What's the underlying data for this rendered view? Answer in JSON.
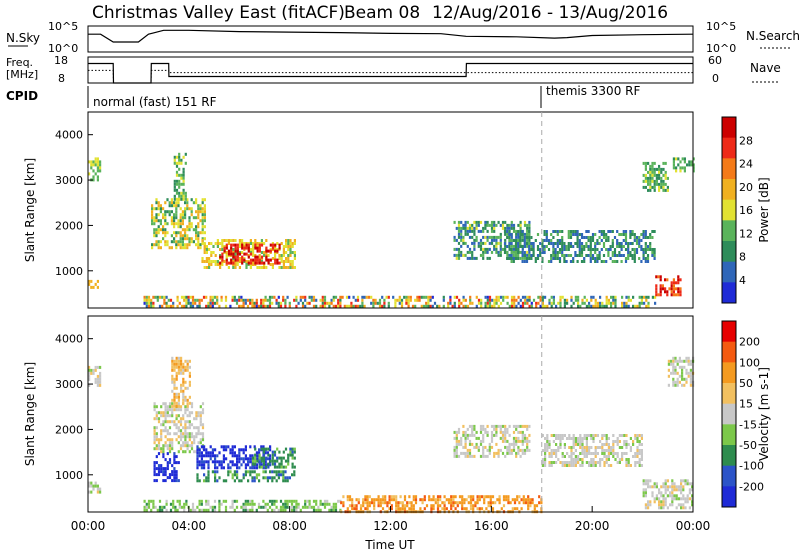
{
  "title": "Christmas Valley East (fitACF)",
  "beam_label": "Beam 08",
  "date_range": "12/Aug/2016 - 13/Aug/2016",
  "colors": {
    "power_scale": [
      "#1f2bd6",
      "#2f66b8",
      "#2e8c5a",
      "#5ab35b",
      "#e2e233",
      "#f0b020",
      "#f47a18",
      "#ee2a18",
      "#cc0000"
    ],
    "velocity_scale": [
      "#e60000",
      "#f45a10",
      "#f49a20",
      "#f2c060",
      "#c8c8c8",
      "#7cc84a",
      "#2e8c4e",
      "#2c54c8",
      "#1f2bd6"
    ]
  },
  "chart_data": [
    {
      "type": "line",
      "panel": "noise",
      "left_label": "N.Sky",
      "right_label": "N.Search",
      "left_ticks": [
        "10^5",
        "10^0"
      ],
      "right_ticks": [
        "10^5",
        "10^0"
      ],
      "x": [
        0,
        0.5,
        1.0,
        2.0,
        2.4,
        2.6,
        3.0,
        4.0,
        6.0,
        8.0,
        10.0,
        12.0,
        14.0,
        15.0,
        17.0,
        18.5,
        19.0,
        20.0,
        22.0,
        24.0
      ],
      "series": [
        {
          "name": "N.Sky",
          "values": [
            0.3,
            0.3,
            0.0,
            0.0,
            0.3,
            0.35,
            0.45,
            0.45,
            0.4,
            0.38,
            0.36,
            0.33,
            0.32,
            0.22,
            0.2,
            0.15,
            0.17,
            0.25,
            0.28,
            0.3
          ]
        }
      ]
    },
    {
      "type": "line",
      "panel": "frequency",
      "left_label": "Freq. [MHz]",
      "right_label": "Nave",
      "left_ticks": [
        18,
        8
      ],
      "right_ticks": [
        60,
        0
      ],
      "x": [
        0,
        1.0,
        1.01,
        2.5,
        2.51,
        3.2,
        3.21,
        15.0,
        15.01,
        19.0,
        19.01,
        24.0
      ],
      "series": [
        {
          "name": "Freq.",
          "values": [
            15.5,
            15.5,
            8,
            8,
            15.5,
            15.5,
            10.5,
            10.5,
            15.5,
            15.5,
            15.5,
            15.5
          ]
        },
        {
          "name": "Nave",
          "values": [
            29,
            29,
            0,
            0,
            29,
            29,
            24,
            24,
            24,
            24,
            24,
            24
          ]
        }
      ]
    },
    {
      "type": "table",
      "panel": "cpid",
      "label": "CPID",
      "segments": [
        {
          "start": 1.0,
          "end": 18.0,
          "text": "normal (fast) 151 RF"
        },
        {
          "start": 18.0,
          "end": 24.0,
          "text": "themis 3300 RF"
        }
      ]
    },
    {
      "type": "heatmap",
      "panel": "power",
      "ylabel": "Slant Range [km]",
      "xlabel": "",
      "xlim": [
        0,
        24
      ],
      "ylim": [
        180,
        4500
      ],
      "yticks": [
        1000,
        2000,
        3000,
        4000
      ],
      "colorbar_label": "Power [dB]",
      "colorbar_ticks": [
        4,
        8,
        12,
        16,
        20,
        24,
        28
      ],
      "colorbar_range": [
        0,
        30
      ],
      "regions": [
        {
          "t0": 0.0,
          "t1": 0.5,
          "r0": 3000,
          "r1": 3500,
          "v0": 10,
          "v1": 16
        },
        {
          "t0": 0.0,
          "t1": 0.5,
          "r0": 650,
          "r1": 800,
          "v0": 16,
          "v1": 20
        },
        {
          "t0": 2.5,
          "t1": 4.6,
          "r0": 1500,
          "r1": 2600,
          "v0": 8,
          "v1": 20
        },
        {
          "t0": 3.4,
          "t1": 3.9,
          "r0": 2600,
          "r1": 3600,
          "v0": 8,
          "v1": 16
        },
        {
          "t0": 4.5,
          "t1": 8.2,
          "r0": 1100,
          "r1": 1700,
          "v0": 12,
          "v1": 20
        },
        {
          "t0": 5.2,
          "t1": 7.6,
          "r0": 1200,
          "r1": 1600,
          "v0": 24,
          "v1": 30
        },
        {
          "t0": 2.2,
          "t1": 18.0,
          "r0": 200,
          "r1": 450,
          "v0": 2,
          "v1": 26
        },
        {
          "t0": 14.5,
          "t1": 17.5,
          "r0": 1300,
          "r1": 2100,
          "v0": 4,
          "v1": 14
        },
        {
          "t0": 16.5,
          "t1": 22.5,
          "r0": 1200,
          "r1": 1900,
          "v0": 4,
          "v1": 12
        },
        {
          "t0": 18.0,
          "t1": 22.5,
          "r0": 200,
          "r1": 450,
          "v0": 4,
          "v1": 20
        },
        {
          "t0": 22.5,
          "t1": 23.5,
          "r0": 450,
          "r1": 900,
          "v0": 20,
          "v1": 30
        },
        {
          "t0": 23.2,
          "t1": 24.0,
          "r0": 3200,
          "r1": 3500,
          "v0": 8,
          "v1": 14
        },
        {
          "t0": 22.0,
          "t1": 23.0,
          "r0": 2800,
          "r1": 3400,
          "v0": 8,
          "v1": 14
        }
      ]
    },
    {
      "type": "heatmap",
      "panel": "velocity",
      "ylabel": "Slant Range [km]",
      "xlabel": "Time UT",
      "xlim": [
        0,
        24
      ],
      "ylim": [
        180,
        4500
      ],
      "xticks": [
        "00:00",
        "04:00",
        "08:00",
        "12:00",
        "16:00",
        "20:00",
        "00:00"
      ],
      "yticks": [
        1000,
        2000,
        3000,
        4000
      ],
      "colorbar_label": "Velocity [m s-1]",
      "colorbar_ticks": [
        200,
        100,
        50,
        15,
        -15,
        -50,
        -100,
        -200
      ],
      "regions": [
        {
          "t0": 0.0,
          "t1": 0.5,
          "r0": 3000,
          "r1": 3400,
          "cls": 4
        },
        {
          "t0": 0.0,
          "t1": 0.5,
          "r0": 600,
          "r1": 850,
          "cls": 4
        },
        {
          "t0": 2.6,
          "t1": 3.6,
          "r0": 900,
          "r1": 1500,
          "cls": 8
        },
        {
          "t0": 2.6,
          "t1": 4.6,
          "r0": 1500,
          "r1": 2600,
          "cls": 4
        },
        {
          "t0": 3.3,
          "t1": 4.0,
          "r0": 2500,
          "r1": 3600,
          "cls": 3
        },
        {
          "t0": 4.3,
          "t1": 7.2,
          "r0": 1150,
          "r1": 1650,
          "cls": 8
        },
        {
          "t0": 6.5,
          "t1": 8.2,
          "r0": 1200,
          "r1": 1600,
          "cls": 6
        },
        {
          "t0": 4.3,
          "t1": 8.2,
          "r0": 850,
          "r1": 1100,
          "cls": 6
        },
        {
          "t0": 2.2,
          "t1": 10.0,
          "r0": 200,
          "r1": 450,
          "cls": 5
        },
        {
          "t0": 10.0,
          "t1": 18.0,
          "r0": 200,
          "r1": 550,
          "cls": 2
        },
        {
          "t0": 14.5,
          "t1": 17.5,
          "r0": 1400,
          "r1": 2100,
          "cls": 4
        },
        {
          "t0": 18.0,
          "t1": 22.0,
          "r0": 1200,
          "r1": 1900,
          "cls": 4
        },
        {
          "t0": 22.0,
          "t1": 24.0,
          "r0": 250,
          "r1": 900,
          "cls": 4
        },
        {
          "t0": 23.0,
          "t1": 24.0,
          "r0": 3000,
          "r1": 3600,
          "cls": 4
        }
      ]
    }
  ]
}
